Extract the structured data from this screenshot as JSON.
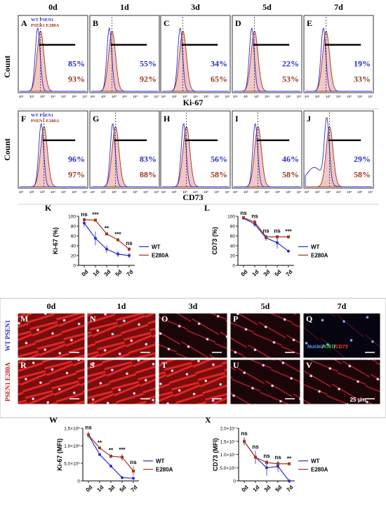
{
  "figure": {
    "day_labels": [
      "0d",
      "1d",
      "3d",
      "5d",
      "7d"
    ],
    "row1": {
      "ylabel": "Count",
      "xaxis_title": "Ki-67",
      "legend": [
        "WT PSEN1",
        "PSEN1 E280A"
      ],
      "panels": [
        {
          "letter": "A",
          "wt": "85%",
          "mut": "93%"
        },
        {
          "letter": "B",
          "wt": "55%",
          "mut": "92%"
        },
        {
          "letter": "C",
          "wt": "34%",
          "mut": "65%"
        },
        {
          "letter": "D",
          "wt": "22%",
          "mut": "53%"
        },
        {
          "letter": "E",
          "wt": "19%",
          "mut": "33%"
        }
      ]
    },
    "row2": {
      "ylabel": "Count",
      "xaxis_title": "CD73",
      "legend": [
        "WT PSEN1",
        "PSEN1 E280A"
      ],
      "panels": [
        {
          "letter": "F",
          "wt": "96%",
          "mut": "97%"
        },
        {
          "letter": "G",
          "wt": "83%",
          "mut": "88%"
        },
        {
          "letter": "H",
          "wt": "56%",
          "mut": "58%"
        },
        {
          "letter": "I",
          "wt": "46%",
          "mut": "58%"
        },
        {
          "letter": "J",
          "wt": "29%",
          "mut": "58%"
        }
      ]
    },
    "tick_labels": [
      "10¹",
      "10²",
      "10³",
      "10⁴",
      "10⁵",
      "10⁶",
      "10⁷"
    ],
    "micro": {
      "row_labels": [
        "WT PSEN1",
        "PSEN1 E280A"
      ],
      "top_letters": [
        "M",
        "N",
        "O",
        "P",
        "Q"
      ],
      "bottom_letters": [
        "R",
        "S",
        "T",
        "U",
        "V"
      ],
      "stain_legend": [
        "Nuclei",
        "/",
        "Ki67",
        "/",
        "CD73"
      ],
      "scale_bar": "25 µm"
    },
    "colors": {
      "wt": "#2b2bd6",
      "mut": "#a0361a",
      "red_stain": "#c81e1e",
      "nuclei": "#e8c8ff"
    }
  },
  "chart_data": [
    {
      "type": "line",
      "panel": "K",
      "categories": [
        "0d",
        "1d",
        "3d",
        "5d",
        "7d"
      ],
      "ylabel": "Ki-67 (%)",
      "ylim": [
        0,
        100
      ],
      "yticks": [
        "0",
        "20",
        "40",
        "60",
        "80",
        "100"
      ],
      "series": [
        {
          "name": "WT",
          "values": [
            86,
            55,
            33,
            23,
            20
          ],
          "err": [
            8,
            14,
            8,
            6,
            5
          ]
        },
        {
          "name": "E280A",
          "values": [
            93,
            92,
            64,
            52,
            33
          ],
          "err": [
            3,
            3,
            3,
            3,
            4
          ]
        }
      ],
      "significance": [
        "ns",
        "***",
        "**",
        "***",
        "ns"
      ],
      "legend_position": "right"
    },
    {
      "type": "line",
      "panel": "L",
      "categories": [
        "0d",
        "1d",
        "3d",
        "5d",
        "7d"
      ],
      "ylabel": "CD73 (%)",
      "ylim": [
        0,
        100
      ],
      "yticks": [
        "0",
        "20",
        "40",
        "60",
        "80",
        "100"
      ],
      "series": [
        {
          "name": "WT",
          "values": [
            96,
            84,
            56,
            46,
            29
          ],
          "err": [
            3,
            6,
            6,
            12,
            3
          ]
        },
        {
          "name": "E280A",
          "values": [
            97,
            88,
            58,
            58,
            58
          ],
          "err": [
            3,
            4,
            4,
            4,
            3
          ]
        }
      ],
      "significance": [
        "ns",
        "ns",
        "ns",
        "ns",
        "***"
      ],
      "legend_position": "right"
    },
    {
      "type": "line",
      "panel": "W",
      "categories": [
        "0d",
        "1d",
        "3d",
        "5d",
        "7d"
      ],
      "ylabel": "Ki-67 (MFI)",
      "ylim": [
        0,
        1600000
      ],
      "yticks": [
        "0",
        "5.0×10⁵",
        "1.0×10⁶",
        "1.5×10⁶"
      ],
      "series": [
        {
          "name": "WT",
          "values": [
            1400000,
            800000,
            450000,
            100000,
            80000
          ],
          "err": [
            100000,
            40000,
            50000,
            10000,
            10000
          ]
        },
        {
          "name": "E280A",
          "values": [
            1400000,
            1000000,
            750000,
            720000,
            300000
          ],
          "err": [
            80000,
            40000,
            60000,
            100000,
            150000
          ]
        }
      ],
      "significance": [
        "ns",
        "**",
        "**",
        "***",
        "ns"
      ],
      "legend_position": "right"
    },
    {
      "type": "line",
      "panel": "X",
      "categories": [
        "0d",
        "1d",
        "3d",
        "5d",
        "7d"
      ],
      "ylabel": "CD73 (MFI)",
      "ylim": [
        0,
        20000000
      ],
      "yticks": [
        "0",
        "5.0×10⁶",
        "1.0×10⁷",
        "1.5×10⁷",
        "2.0×10⁷"
      ],
      "series": [
        {
          "name": "WT",
          "values": [
            15000000,
            9000000,
            5000000,
            5500000,
            0
          ],
          "err": [
            1500000,
            2500000,
            3000000,
            2000000,
            200000
          ]
        },
        {
          "name": "E280A",
          "values": [
            15000000,
            9000000,
            7000000,
            6500000,
            6500000
          ],
          "err": [
            1000000,
            1000000,
            800000,
            700000,
            500000
          ]
        }
      ],
      "significance": [
        "ns",
        "ns",
        "ns",
        "ns",
        "**"
      ],
      "legend_position": "right"
    }
  ]
}
